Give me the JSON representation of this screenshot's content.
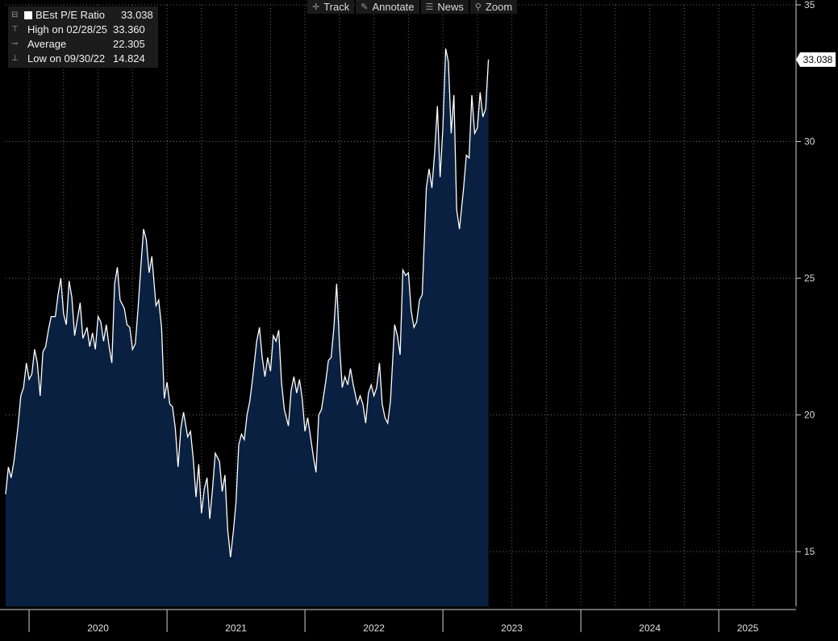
{
  "toolbar": {
    "items": [
      {
        "label": "Track",
        "icon": "crosshair-icon"
      },
      {
        "label": "Annotate",
        "icon": "pencil-icon"
      },
      {
        "label": "News",
        "icon": "news-icon"
      },
      {
        "label": "Zoom",
        "icon": "magnifier-icon"
      }
    ]
  },
  "legend": {
    "series_name": "BEst P/E Ratio",
    "series_value": "33.038",
    "high_label": "High on 02/28/25",
    "high_value": "33.360",
    "avg_label": "Average",
    "avg_value": "22.305",
    "low_label": "Low on 09/30/22",
    "low_value": "14.824"
  },
  "colors": {
    "background": "#000000",
    "area_fill": "#0a2040",
    "line": "#ffffff",
    "grid": "#6a6a6a"
  },
  "chart_data": {
    "type": "area",
    "title": "",
    "xlabel": "",
    "ylabel": "",
    "ylim": [
      13,
      35
    ],
    "yticks": [
      15,
      20,
      25,
      30,
      35
    ],
    "xlim": [
      2019.83,
      2025.42
    ],
    "year_labels": [
      "2020",
      "2021",
      "2022",
      "2023",
      "2024",
      "2025"
    ],
    "last_value_label": "33.038",
    "grid": true,
    "series": [
      {
        "name": "BEst P/E Ratio",
        "points": [
          [
            2019.83,
            17.1
          ],
          [
            2019.85,
            18.1
          ],
          [
            2019.87,
            17.7
          ],
          [
            2019.89,
            18.3
          ],
          [
            2019.92,
            19.6
          ],
          [
            2019.94,
            20.7
          ],
          [
            2019.96,
            21.0
          ],
          [
            2019.98,
            21.9
          ],
          [
            2020.0,
            21.3
          ],
          [
            2020.02,
            21.5
          ],
          [
            2020.04,
            22.4
          ],
          [
            2020.06,
            21.9
          ],
          [
            2020.08,
            20.7
          ],
          [
            2020.1,
            22.3
          ],
          [
            2020.12,
            22.5
          ],
          [
            2020.14,
            23.1
          ],
          [
            2020.16,
            23.6
          ],
          [
            2020.19,
            23.6
          ],
          [
            2020.21,
            24.4
          ],
          [
            2020.23,
            25.0
          ],
          [
            2020.25,
            23.7
          ],
          [
            2020.27,
            23.3
          ],
          [
            2020.29,
            24.9
          ],
          [
            2020.31,
            24.3
          ],
          [
            2020.33,
            22.9
          ],
          [
            2020.35,
            23.5
          ],
          [
            2020.37,
            24.1
          ],
          [
            2020.39,
            22.8
          ],
          [
            2020.42,
            23.2
          ],
          [
            2020.44,
            22.5
          ],
          [
            2020.46,
            23.0
          ],
          [
            2020.48,
            22.4
          ],
          [
            2020.5,
            23.6
          ],
          [
            2020.52,
            23.4
          ],
          [
            2020.54,
            22.7
          ],
          [
            2020.56,
            23.3
          ],
          [
            2020.58,
            22.5
          ],
          [
            2020.6,
            21.9
          ],
          [
            2020.62,
            24.8
          ],
          [
            2020.64,
            25.4
          ],
          [
            2020.66,
            24.2
          ],
          [
            2020.69,
            23.9
          ],
          [
            2020.71,
            23.3
          ],
          [
            2020.73,
            23.2
          ],
          [
            2020.75,
            22.4
          ],
          [
            2020.77,
            22.6
          ],
          [
            2020.79,
            23.9
          ],
          [
            2020.81,
            25.4
          ],
          [
            2020.83,
            26.8
          ],
          [
            2020.85,
            26.4
          ],
          [
            2020.87,
            25.2
          ],
          [
            2020.89,
            25.8
          ],
          [
            2020.92,
            24.0
          ],
          [
            2020.94,
            24.2
          ],
          [
            2020.96,
            23.2
          ],
          [
            2020.98,
            20.6
          ],
          [
            2021.0,
            21.2
          ],
          [
            2021.02,
            20.4
          ],
          [
            2021.04,
            20.3
          ],
          [
            2021.06,
            19.5
          ],
          [
            2021.08,
            18.1
          ],
          [
            2021.1,
            19.5
          ],
          [
            2021.12,
            20.1
          ],
          [
            2021.15,
            19.2
          ],
          [
            2021.17,
            19.4
          ],
          [
            2021.19,
            18.4
          ],
          [
            2021.21,
            17.0
          ],
          [
            2021.23,
            18.2
          ],
          [
            2021.25,
            16.4
          ],
          [
            2021.27,
            17.3
          ],
          [
            2021.29,
            17.7
          ],
          [
            2021.31,
            16.2
          ],
          [
            2021.33,
            17.3
          ],
          [
            2021.35,
            18.6
          ],
          [
            2021.38,
            18.3
          ],
          [
            2021.4,
            17.2
          ],
          [
            2021.42,
            17.8
          ],
          [
            2021.44,
            15.8
          ],
          [
            2021.46,
            14.8
          ],
          [
            2021.48,
            15.7
          ],
          [
            2021.5,
            16.8
          ],
          [
            2021.52,
            18.9
          ],
          [
            2021.54,
            19.3
          ],
          [
            2021.56,
            19.1
          ],
          [
            2021.58,
            20.0
          ],
          [
            2021.6,
            20.5
          ],
          [
            2021.62,
            21.3
          ],
          [
            2021.65,
            22.7
          ],
          [
            2021.67,
            23.2
          ],
          [
            2021.69,
            22.1
          ],
          [
            2021.71,
            21.4
          ],
          [
            2021.73,
            22.1
          ],
          [
            2021.75,
            21.6
          ],
          [
            2021.77,
            22.9
          ],
          [
            2021.79,
            22.7
          ],
          [
            2021.81,
            23.1
          ],
          [
            2021.83,
            21.2
          ],
          [
            2021.85,
            20.2
          ],
          [
            2021.88,
            19.6
          ],
          [
            2021.9,
            20.9
          ],
          [
            2021.92,
            21.4
          ],
          [
            2021.94,
            20.8
          ],
          [
            2021.96,
            21.3
          ],
          [
            2021.98,
            20.6
          ],
          [
            2022.0,
            19.4
          ],
          [
            2022.02,
            19.9
          ],
          [
            2022.04,
            19.2
          ],
          [
            2022.06,
            18.5
          ],
          [
            2022.08,
            17.9
          ],
          [
            2022.1,
            20.0
          ],
          [
            2022.12,
            20.2
          ],
          [
            2022.15,
            21.2
          ],
          [
            2022.17,
            22.0
          ],
          [
            2022.19,
            22.1
          ],
          [
            2022.21,
            23.2
          ],
          [
            2022.23,
            24.8
          ],
          [
            2022.25,
            22.6
          ],
          [
            2022.27,
            21.0
          ],
          [
            2022.29,
            21.4
          ],
          [
            2022.31,
            21.1
          ],
          [
            2022.33,
            21.7
          ],
          [
            2022.35,
            21.1
          ],
          [
            2022.38,
            20.4
          ],
          [
            2022.4,
            20.7
          ],
          [
            2022.42,
            20.4
          ],
          [
            2022.44,
            19.7
          ],
          [
            2022.46,
            20.8
          ],
          [
            2022.48,
            21.1
          ],
          [
            2022.5,
            20.7
          ],
          [
            2022.52,
            21.0
          ],
          [
            2022.54,
            21.9
          ],
          [
            2022.56,
            20.4
          ],
          [
            2022.58,
            19.9
          ],
          [
            2022.6,
            19.7
          ],
          [
            2022.62,
            20.5
          ],
          [
            2022.65,
            23.3
          ],
          [
            2022.67,
            22.9
          ],
          [
            2022.69,
            22.2
          ],
          [
            2022.71,
            25.3
          ],
          [
            2022.73,
            25.1
          ],
          [
            2022.75,
            25.2
          ],
          [
            2022.77,
            23.8
          ],
          [
            2022.79,
            23.2
          ],
          [
            2022.81,
            23.4
          ],
          [
            2022.83,
            24.2
          ],
          [
            2022.85,
            24.4
          ],
          [
            2022.88,
            28.3
          ],
          [
            2022.9,
            29.0
          ],
          [
            2022.92,
            28.3
          ],
          [
            2022.94,
            29.6
          ],
          [
            2022.96,
            31.3
          ],
          [
            2022.98,
            28.7
          ],
          [
            2023.0,
            30.5
          ],
          [
            2023.02,
            33.4
          ],
          [
            2023.04,
            32.9
          ],
          [
            2023.06,
            30.3
          ],
          [
            2023.08,
            31.7
          ],
          [
            2023.1,
            27.5
          ],
          [
            2023.12,
            26.8
          ],
          [
            2023.15,
            28.3
          ],
          [
            2023.17,
            29.5
          ],
          [
            2023.19,
            29.4
          ],
          [
            2023.21,
            31.7
          ],
          [
            2023.23,
            30.3
          ],
          [
            2023.25,
            30.5
          ],
          [
            2023.27,
            31.8
          ],
          [
            2023.29,
            30.9
          ],
          [
            2023.31,
            31.2
          ],
          [
            2023.33,
            33.0
          ]
        ]
      }
    ]
  }
}
